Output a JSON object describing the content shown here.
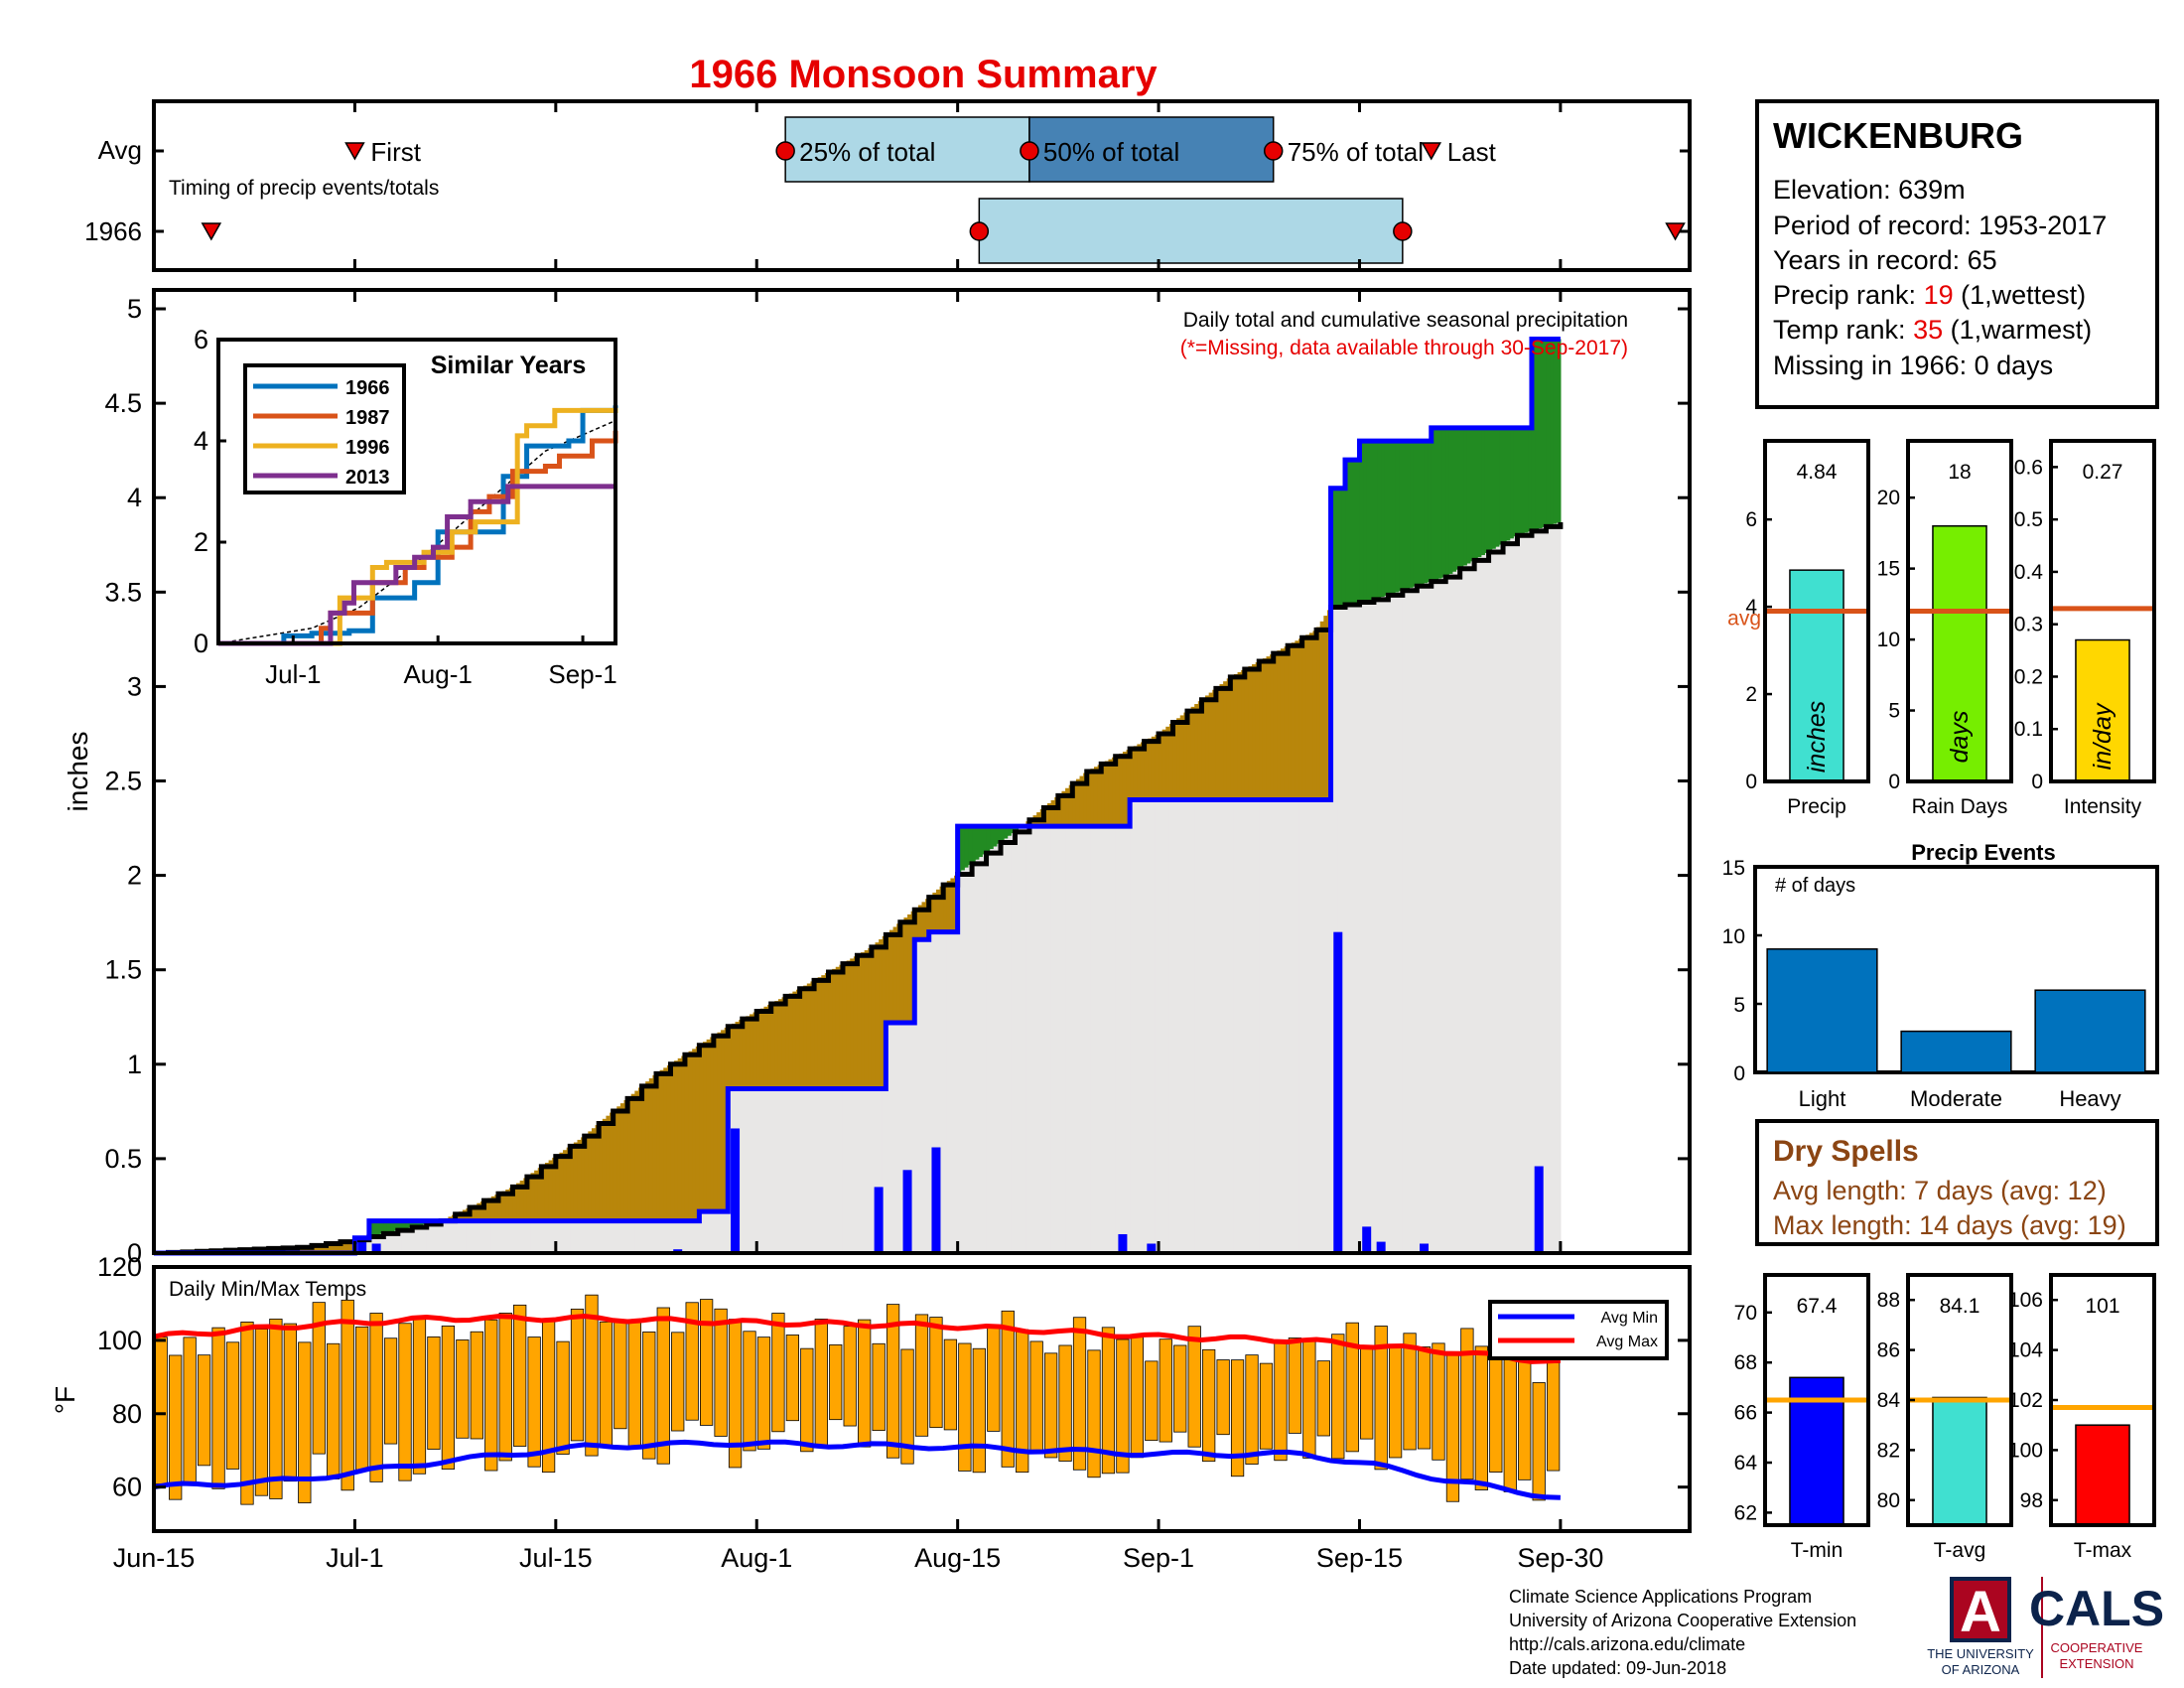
{
  "title": "1966 Monsoon Summary",
  "timing": {
    "row_labels": [
      "Avg",
      "1966"
    ],
    "subtitle": "Timing of precip events/totals",
    "first_label": "First",
    "last_label": "Last",
    "p25_label": "25% of total",
    "p50_label": "50% of total",
    "p75_label": "75% of total",
    "avg": {
      "first": 14,
      "p25": 44,
      "p50": 61,
      "p75": 78,
      "last": 89
    },
    "year": {
      "first": 4,
      "p25": 57.5,
      "p75": 87,
      "last": 106
    }
  },
  "x_axis": {
    "ticks": [
      {
        "day": 0,
        "label": "Jun-15"
      },
      {
        "day": 14,
        "label": "Jul-1"
      },
      {
        "day": 28,
        "label": "Jul-15"
      },
      {
        "day": 42,
        "label": "Aug-1"
      },
      {
        "day": 56,
        "label": "Aug-15"
      },
      {
        "day": 70,
        "label": "Sep-1"
      },
      {
        "day": 84,
        "label": "Sep-15"
      },
      {
        "day": 98,
        "label": "Sep-30"
      }
    ],
    "max_day": 107
  },
  "station": {
    "name": "WICKENBURG",
    "elevation": "Elevation: 639m",
    "period": "Period of record: 1953-2017",
    "years": "Years in record: 65",
    "precip_rank_pre": "Precip rank: ",
    "precip_rank_val": "19",
    "precip_rank_post": " (1,wettest)",
    "temp_rank_pre": "Temp rank: ",
    "temp_rank_val": "35",
    "temp_rank_post": " (1,warmest)",
    "missing": "Missing in 1966: 0 days"
  },
  "main_chart": {
    "ylabel": "inches",
    "yticks": [
      "0",
      "0.5",
      "1",
      "1.5",
      "2",
      "2.5",
      "3",
      "3.5",
      "4",
      "4.5",
      "5"
    ],
    "ylim": [
      0,
      5.1
    ],
    "note1": "Daily total and cumulative seasonal precipitation",
    "note2": "(*=Missing, data available through 30-Sep-2017)"
  },
  "chart_data": [
    {
      "type": "area",
      "name": "cumulative_seasonal_precip",
      "x_unit": "days since Jun-15",
      "year_cumulative": [
        [
          0,
          0
        ],
        [
          14,
          0.08
        ],
        [
          15,
          0.17
        ],
        [
          38,
          0.22
        ],
        [
          40,
          0.87
        ],
        [
          50,
          0.87
        ],
        [
          51,
          1.22
        ],
        [
          52,
          1.22
        ],
        [
          53,
          1.66
        ],
        [
          54,
          1.7
        ],
        [
          55,
          1.7
        ],
        [
          56,
          2.26
        ],
        [
          67,
          2.26
        ],
        [
          68,
          2.4
        ],
        [
          81,
          2.4
        ],
        [
          82,
          4.05
        ],
        [
          83,
          4.2
        ],
        [
          84,
          4.3
        ],
        [
          88,
          4.3
        ],
        [
          89,
          4.37
        ],
        [
          95,
          4.37
        ],
        [
          96,
          4.84
        ],
        [
          98,
          4.84
        ]
      ],
      "avg_cumulative": [
        [
          0,
          0
        ],
        [
          10,
          0.03
        ],
        [
          14,
          0.07
        ],
        [
          20,
          0.17
        ],
        [
          25,
          0.35
        ],
        [
          30,
          0.62
        ],
        [
          35,
          0.95
        ],
        [
          40,
          1.2
        ],
        [
          45,
          1.4
        ],
        [
          50,
          1.62
        ],
        [
          55,
          1.95
        ],
        [
          60,
          2.23
        ],
        [
          65,
          2.55
        ],
        [
          70,
          2.75
        ],
        [
          75,
          3.05
        ],
        [
          81,
          3.3
        ],
        [
          82,
          3.42
        ],
        [
          85,
          3.46
        ],
        [
          90,
          3.58
        ],
        [
          95,
          3.8
        ],
        [
          98,
          3.87
        ]
      ],
      "daily_precip": [
        [
          14,
          0.08
        ],
        [
          15,
          0.05
        ],
        [
          36,
          0.02
        ],
        [
          40,
          0.66
        ],
        [
          50,
          0.35
        ],
        [
          52,
          0.44
        ],
        [
          54,
          0.56
        ],
        [
          67,
          0.1
        ],
        [
          69,
          0.05
        ],
        [
          82,
          1.7
        ],
        [
          84,
          0.14
        ],
        [
          85,
          0.06
        ],
        [
          88,
          0.05
        ],
        [
          96,
          0.46
        ]
      ]
    },
    {
      "type": "line",
      "name": "Similar Years",
      "title": "Similar Years",
      "x_ticks": [
        "Jul-1",
        "Aug-1",
        "Sep-1"
      ],
      "yticks": [
        "0",
        "2",
        "4",
        "6"
      ],
      "ylim": [
        0,
        6
      ],
      "series": [
        {
          "name": "1966",
          "color": "#0072bd",
          "points": [
            [
              0,
              0
            ],
            [
              12,
              0
            ],
            [
              14,
              0.15
            ],
            [
              18,
              0.15
            ],
            [
              20,
              0.2
            ],
            [
              28,
              0.25
            ],
            [
              33,
              0.9
            ],
            [
              40,
              0.9
            ],
            [
              42,
              1.2
            ],
            [
              47,
              2.2
            ],
            [
              58,
              2.2
            ],
            [
              61,
              3.3
            ],
            [
              64,
              3.3
            ],
            [
              66,
              3.9
            ],
            [
              75,
              4.0
            ],
            [
              78,
              4.6
            ],
            [
              85,
              4.7
            ]
          ]
        },
        {
          "name": "1987",
          "color": "#d95319",
          "points": [
            [
              0,
              0
            ],
            [
              20,
              0
            ],
            [
              22,
              0.3
            ],
            [
              24,
              0.6
            ],
            [
              30,
              0.6
            ],
            [
              33,
              1.2
            ],
            [
              38,
              1.2
            ],
            [
              40,
              1.5
            ],
            [
              44,
              1.7
            ],
            [
              50,
              1.9
            ],
            [
              54,
              2.6
            ],
            [
              58,
              2.9
            ],
            [
              63,
              3.4
            ],
            [
              70,
              3.5
            ],
            [
              73,
              3.7
            ],
            [
              77,
              3.7
            ],
            [
              80,
              4.0
            ],
            [
              83,
              4.0
            ],
            [
              85,
              4.2
            ]
          ]
        },
        {
          "name": "1996",
          "color": "#edb120",
          "points": [
            [
              0,
              0
            ],
            [
              22,
              0
            ],
            [
              26,
              0.9
            ],
            [
              30,
              0.9
            ],
            [
              33,
              1.5
            ],
            [
              36,
              1.6
            ],
            [
              40,
              1.6
            ],
            [
              44,
              1.8
            ],
            [
              50,
              2.2
            ],
            [
              55,
              2.4
            ],
            [
              62,
              2.4
            ],
            [
              64,
              4.1
            ],
            [
              66,
              4.3
            ],
            [
              72,
              4.6
            ],
            [
              85,
              4.65
            ]
          ]
        },
        {
          "name": "2013",
          "color": "#7e2f8e",
          "points": [
            [
              0,
              0
            ],
            [
              22,
              0
            ],
            [
              24,
              0.6
            ],
            [
              27,
              0.8
            ],
            [
              29,
              1.2
            ],
            [
              33,
              1.2
            ],
            [
              38,
              1.5
            ],
            [
              42,
              1.7
            ],
            [
              46,
              1.9
            ],
            [
              49,
              2.5
            ],
            [
              54,
              2.8
            ],
            [
              62,
              3.1
            ],
            [
              85,
              3.1
            ]
          ]
        }
      ],
      "avg_dashed": [
        [
          0,
          0
        ],
        [
          20,
          0.3
        ],
        [
          30,
          0.7
        ],
        [
          40,
          1.4
        ],
        [
          50,
          2.2
        ],
        [
          60,
          3.0
        ],
        [
          70,
          3.8
        ],
        [
          85,
          4.4
        ]
      ]
    },
    {
      "type": "bar",
      "name": "season_totals",
      "panels": [
        {
          "value_label": "4.84",
          "value": 4.84,
          "avg": 3.9,
          "ylim": [
            0,
            7.8
          ],
          "yticks": [
            "0",
            "2",
            "4",
            "6"
          ],
          "unit": "inches",
          "xlabel": "Precip",
          "color": "#40e0d0",
          "avg_label": "avg"
        },
        {
          "value_label": "18",
          "value": 18,
          "avg": 12,
          "ylim": [
            0,
            24
          ],
          "yticks": [
            "0",
            "5",
            "10",
            "15",
            "20"
          ],
          "unit": "days",
          "xlabel": "Rain Days",
          "color": "#76ee00"
        },
        {
          "value_label": "0.27",
          "value": 0.27,
          "avg": 0.33,
          "ylim": [
            0,
            0.65
          ],
          "yticks": [
            "0",
            "0.1",
            "0.2",
            "0.3",
            "0.4",
            "0.5",
            "0.6"
          ],
          "unit": "in/day",
          "xlabel": "Intensity",
          "color": "#ffd700"
        }
      ]
    },
    {
      "type": "bar",
      "name": "Precip Events",
      "title": "Precip Events",
      "ylabel_note": "# of days",
      "categories": [
        "Light",
        "Moderate",
        "Heavy"
      ],
      "values": [
        9,
        3,
        6
      ],
      "ylim": [
        0,
        15
      ],
      "yticks": [
        "0",
        "5",
        "10",
        "15"
      ]
    },
    {
      "type": "bar",
      "name": "Daily Min/Max Temps",
      "title": "Daily Min/Max Temps",
      "ylabel": "°F",
      "yticks": [
        "60",
        "80",
        "100",
        "120"
      ],
      "ylim": [
        48,
        120
      ],
      "legend": [
        "Avg Min",
        "Avg Max"
      ],
      "avg_min": [
        [
          0,
          60
        ],
        [
          10,
          62
        ],
        [
          20,
          67
        ],
        [
          30,
          71
        ],
        [
          40,
          72
        ],
        [
          55,
          71
        ],
        [
          70,
          69
        ],
        [
          80,
          69
        ],
        [
          85,
          66
        ],
        [
          90,
          62
        ],
        [
          98,
          57
        ]
      ],
      "avg_max": [
        [
          0,
          101
        ],
        [
          10,
          104
        ],
        [
          20,
          106
        ],
        [
          30,
          106
        ],
        [
          40,
          105
        ],
        [
          55,
          104
        ],
        [
          70,
          101
        ],
        [
          80,
          100
        ],
        [
          90,
          97
        ],
        [
          98,
          94
        ]
      ]
    },
    {
      "type": "bar",
      "name": "season_temps",
      "panels": [
        {
          "value_label": "67.4",
          "value": 67.4,
          "avg": 66.5,
          "ylim": [
            61.5,
            71.5
          ],
          "yticks": [
            "62",
            "64",
            "66",
            "68",
            "70"
          ],
          "xlabel": "T-min",
          "color": "#0000ff"
        },
        {
          "value_label": "84.1",
          "value": 84.1,
          "avg": 84.0,
          "ylim": [
            79,
            89
          ],
          "yticks": [
            "80",
            "82",
            "84",
            "86",
            "88"
          ],
          "xlabel": "T-avg",
          "color": "#40e0d0"
        },
        {
          "value_label": "101",
          "value": 101,
          "avg": 101.7,
          "ylim": [
            97,
            107
          ],
          "yticks": [
            "98",
            "100",
            "102",
            "104",
            "106"
          ],
          "xlabel": "T-max",
          "color": "#ff0000"
        }
      ]
    }
  ],
  "dry_spells": {
    "title": "Dry Spells",
    "avg": "Avg length: 7 days (avg: 12)",
    "max": "Max length: 14 days (avg: 19)"
  },
  "footer": {
    "line1": "Climate Science Applications Program",
    "line2": "University of Arizona Cooperative Extension",
    "line3": "http://cals.arizona.edu/climate",
    "line4": " Date updated: 09-Jun-2018"
  },
  "logos": {
    "ua_letter": "A",
    "ua_line1": "THE UNIVERSITY",
    "ua_line2": "OF ARIZONA",
    "cals": "CALS",
    "cals_line1": "COOPERATIVE",
    "cals_line2": "EXTENSION"
  },
  "colors": {
    "title": "#e60000",
    "avg_fill": "#b8860b",
    "above_fill": "#228b22",
    "year_line": "#0000ff",
    "season_fill": "#e8e7e6",
    "temp_bar": "#ffa500",
    "avg_min": "#0000ff",
    "avg_max": "#ff0000",
    "event_bar": "#0072bd",
    "marker": "#e60000",
    "dry_text": "#8b4513",
    "box_light": "#add8e6",
    "box_dark": "#4682b4"
  }
}
